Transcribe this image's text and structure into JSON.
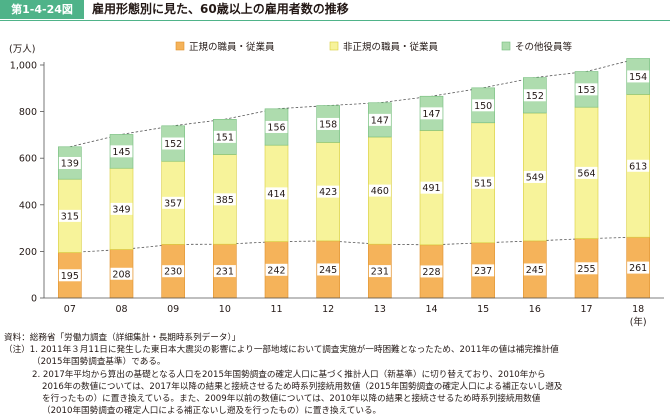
{
  "figure": {
    "number": "第1-4-24図",
    "title": "雇用形態別に見た、60歳以上の雇用者数の推移"
  },
  "colors": {
    "accent": "#4fb389",
    "regular": "#f5b35a",
    "nonregular": "#f7f39a",
    "other": "#aedcae",
    "regular_stroke": "#e0902a",
    "nonregular_stroke": "#d8cd3c",
    "other_stroke": "#74bd7c"
  },
  "chart_data": {
    "type": "bar",
    "stacked": true,
    "unit_label": "(万人)",
    "x_unit_label": "(年)",
    "categories": [
      "07",
      "08",
      "09",
      "10",
      "11",
      "12",
      "13",
      "14",
      "15",
      "16",
      "17",
      "18"
    ],
    "series": [
      {
        "name": "正規の職員・従業員",
        "color_key": "regular",
        "values": [
          195,
          208,
          230,
          231,
          242,
          245,
          231,
          228,
          237,
          245,
          255,
          261
        ]
      },
      {
        "name": "非正規の職員・従業員",
        "color_key": "nonregular",
        "values": [
          315,
          349,
          357,
          385,
          414,
          423,
          460,
          491,
          515,
          549,
          564,
          613
        ]
      },
      {
        "name": "その他役員等",
        "color_key": "other",
        "values": [
          139,
          145,
          152,
          151,
          156,
          158,
          147,
          147,
          150,
          152,
          153,
          154
        ]
      }
    ],
    "y_ticks": [
      "0",
      "200",
      "400",
      "600",
      "800",
      "1,000"
    ],
    "ylim": [
      0,
      1000
    ],
    "legend_position": "top",
    "grid": false,
    "dashed_connectors": true
  },
  "notes": {
    "source": "資料：総務省「労働力調査（詳細集計・長期時系列データ）」",
    "n1a": "（注）1. 2011年３月11日に発生した東日本大震災の影響により一部地域において調査実施が一時困難となったため、2011年の値は補完推計値",
    "n1b": "（2015年国勢調査基準）である。",
    "n2a": "2. 2017年平均から算出の基礎となる人口を2015年国勢調査の確定人口に基づく推計人口（新基準）に切り替えており、2010年から",
    "n2b": "2016年の数値については、2017年以降の結果と接続させるため時系列接続用数値（2015年国勢調査の確定人口による補正ないし遡及",
    "n2c": "を行ったもの）に置き換えている。また、2009年以前の数値については、2010年以降の結果と接続させるため時系列接続用数値",
    "n2d": "（2010年国勢調査の確定人口による補正ないし遡及を行ったもの）に置き換えている。"
  }
}
